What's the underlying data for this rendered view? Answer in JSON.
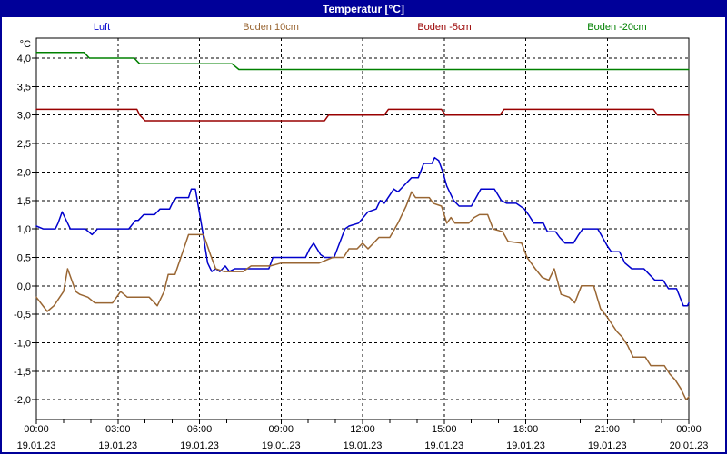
{
  "window": {
    "title": "Temperatur [°C]",
    "titlebar_color": "#000099",
    "border_color": "#000099"
  },
  "legend": [
    {
      "label": "Luft",
      "color": "#0000CC"
    },
    {
      "label": "Boden 10cm",
      "color": "#996633"
    },
    {
      "label": "Boden -5cm",
      "color": "#990000"
    },
    {
      "label": "Boden -20cm",
      "color": "#008000"
    }
  ],
  "chart_data": {
    "type": "line",
    "title": "Temperatur [°C]",
    "unit_label": "°C",
    "grid": "dashed-black",
    "legend_position": "top",
    "ylim": [
      -2.35,
      4.35
    ],
    "xlim_hours": [
      0,
      24
    ],
    "y_ticks": [
      {
        "value": 4.0,
        "label": "4,0"
      },
      {
        "value": 3.5,
        "label": "3,5"
      },
      {
        "value": 3.0,
        "label": "3,0"
      },
      {
        "value": 2.5,
        "label": "2,5"
      },
      {
        "value": 2.0,
        "label": "2,0"
      },
      {
        "value": 1.5,
        "label": "1,5"
      },
      {
        "value": 1.0,
        "label": "1,0"
      },
      {
        "value": 0.5,
        "label": "0,5"
      },
      {
        "value": 0.0,
        "label": "0,0"
      },
      {
        "value": -0.5,
        "label": "-0,5"
      },
      {
        "value": -1.0,
        "label": "-1,0"
      },
      {
        "value": -1.5,
        "label": "-1,5"
      },
      {
        "value": -2.0,
        "label": "-2,0"
      }
    ],
    "x_ticks": [
      {
        "hour": 0,
        "time": "00:00",
        "date": "19.01.23"
      },
      {
        "hour": 3,
        "time": "03:00",
        "date": "19.01.23"
      },
      {
        "hour": 6,
        "time": "06:00",
        "date": "19.01.23"
      },
      {
        "hour": 9,
        "time": "09:00",
        "date": "19.01.23"
      },
      {
        "hour": 12,
        "time": "12:00",
        "date": "19.01.23"
      },
      {
        "hour": 15,
        "time": "15:00",
        "date": "19.01.23"
      },
      {
        "hour": 18,
        "time": "18:00",
        "date": "19.01.23"
      },
      {
        "hour": 21,
        "time": "21:00",
        "date": "19.01.23"
      },
      {
        "hour": 24,
        "time": "00:00",
        "date": "20.01.23"
      }
    ],
    "series": [
      {
        "name": "Luft",
        "color": "#0000CC",
        "points": [
          [
            0,
            1.05
          ],
          [
            0.25,
            1.0
          ],
          [
            0.7,
            1.0
          ],
          [
            0.8,
            1.1
          ],
          [
            0.95,
            1.3
          ],
          [
            1.05,
            1.2
          ],
          [
            1.25,
            1.0
          ],
          [
            1.8,
            1.0
          ],
          [
            2.05,
            0.9
          ],
          [
            2.25,
            1.0
          ],
          [
            3.4,
            1.0
          ],
          [
            3.65,
            1.15
          ],
          [
            3.75,
            1.15
          ],
          [
            3.95,
            1.25
          ],
          [
            4.35,
            1.25
          ],
          [
            4.55,
            1.35
          ],
          [
            4.9,
            1.35
          ],
          [
            5.0,
            1.45
          ],
          [
            5.15,
            1.55
          ],
          [
            5.6,
            1.55
          ],
          [
            5.7,
            1.7
          ],
          [
            5.85,
            1.7
          ],
          [
            6.1,
            1.0
          ],
          [
            6.3,
            0.4
          ],
          [
            6.45,
            0.25
          ],
          [
            6.6,
            0.3
          ],
          [
            6.75,
            0.25
          ],
          [
            6.95,
            0.35
          ],
          [
            7.1,
            0.25
          ],
          [
            7.3,
            0.3
          ],
          [
            8.55,
            0.3
          ],
          [
            8.7,
            0.5
          ],
          [
            9.9,
            0.5
          ],
          [
            10.05,
            0.65
          ],
          [
            10.2,
            0.75
          ],
          [
            10.45,
            0.55
          ],
          [
            10.6,
            0.5
          ],
          [
            10.95,
            0.5
          ],
          [
            11.35,
            1.0
          ],
          [
            11.5,
            1.05
          ],
          [
            11.85,
            1.1
          ],
          [
            12.2,
            1.3
          ],
          [
            12.5,
            1.35
          ],
          [
            12.65,
            1.5
          ],
          [
            12.8,
            1.45
          ],
          [
            13.15,
            1.7
          ],
          [
            13.3,
            1.65
          ],
          [
            13.5,
            1.75
          ],
          [
            13.8,
            1.9
          ],
          [
            14.05,
            1.9
          ],
          [
            14.25,
            2.15
          ],
          [
            14.55,
            2.15
          ],
          [
            14.65,
            2.25
          ],
          [
            14.8,
            2.2
          ],
          [
            14.95,
            2.0
          ],
          [
            15.1,
            1.75
          ],
          [
            15.35,
            1.5
          ],
          [
            15.55,
            1.4
          ],
          [
            16.0,
            1.4
          ],
          [
            16.35,
            1.7
          ],
          [
            16.85,
            1.7
          ],
          [
            17.1,
            1.5
          ],
          [
            17.3,
            1.45
          ],
          [
            17.65,
            1.45
          ],
          [
            17.8,
            1.4
          ],
          [
            17.95,
            1.35
          ],
          [
            18.1,
            1.25
          ],
          [
            18.3,
            1.1
          ],
          [
            18.65,
            1.1
          ],
          [
            18.8,
            0.95
          ],
          [
            19.1,
            0.95
          ],
          [
            19.25,
            0.85
          ],
          [
            19.45,
            0.75
          ],
          [
            19.75,
            0.75
          ],
          [
            19.95,
            0.9
          ],
          [
            20.1,
            1.0
          ],
          [
            20.65,
            1.0
          ],
          [
            21.0,
            0.7
          ],
          [
            21.15,
            0.6
          ],
          [
            21.45,
            0.6
          ],
          [
            21.65,
            0.4
          ],
          [
            21.9,
            0.3
          ],
          [
            22.35,
            0.3
          ],
          [
            22.55,
            0.2
          ],
          [
            22.75,
            0.1
          ],
          [
            23.05,
            0.1
          ],
          [
            23.25,
            -0.05
          ],
          [
            23.55,
            -0.05
          ],
          [
            23.8,
            -0.35
          ],
          [
            23.95,
            -0.35
          ],
          [
            24,
            -0.3
          ]
        ]
      },
      {
        "name": "Boden 10cm",
        "color": "#996633",
        "points": [
          [
            0,
            -0.2
          ],
          [
            0.4,
            -0.45
          ],
          [
            0.65,
            -0.35
          ],
          [
            1.0,
            -0.1
          ],
          [
            1.15,
            0.3
          ],
          [
            1.45,
            -0.1
          ],
          [
            1.6,
            -0.15
          ],
          [
            1.9,
            -0.2
          ],
          [
            2.15,
            -0.3
          ],
          [
            2.8,
            -0.3
          ],
          [
            3.1,
            -0.1
          ],
          [
            3.35,
            -0.2
          ],
          [
            4.15,
            -0.2
          ],
          [
            4.45,
            -0.35
          ],
          [
            4.7,
            -0.1
          ],
          [
            4.85,
            0.2
          ],
          [
            5.1,
            0.2
          ],
          [
            5.35,
            0.55
          ],
          [
            5.6,
            0.9
          ],
          [
            6.15,
            0.9
          ],
          [
            6.4,
            0.55
          ],
          [
            6.6,
            0.3
          ],
          [
            6.9,
            0.25
          ],
          [
            7.6,
            0.25
          ],
          [
            7.9,
            0.35
          ],
          [
            8.6,
            0.35
          ],
          [
            9.0,
            0.4
          ],
          [
            10.4,
            0.4
          ],
          [
            10.9,
            0.5
          ],
          [
            11.3,
            0.5
          ],
          [
            11.5,
            0.65
          ],
          [
            11.8,
            0.65
          ],
          [
            12.0,
            0.75
          ],
          [
            12.2,
            0.65
          ],
          [
            12.4,
            0.75
          ],
          [
            12.6,
            0.85
          ],
          [
            13.0,
            0.85
          ],
          [
            13.3,
            1.1
          ],
          [
            13.6,
            1.4
          ],
          [
            13.8,
            1.65
          ],
          [
            13.95,
            1.55
          ],
          [
            14.45,
            1.55
          ],
          [
            14.6,
            1.45
          ],
          [
            14.9,
            1.4
          ],
          [
            15.1,
            1.1
          ],
          [
            15.25,
            1.2
          ],
          [
            15.4,
            1.1
          ],
          [
            15.9,
            1.1
          ],
          [
            16.1,
            1.2
          ],
          [
            16.3,
            1.25
          ],
          [
            16.6,
            1.25
          ],
          [
            16.8,
            1.0
          ],
          [
            17.15,
            0.95
          ],
          [
            17.35,
            0.78
          ],
          [
            17.85,
            0.75
          ],
          [
            18.05,
            0.5
          ],
          [
            18.35,
            0.3
          ],
          [
            18.6,
            0.15
          ],
          [
            18.85,
            0.1
          ],
          [
            19.05,
            0.3
          ],
          [
            19.3,
            -0.15
          ],
          [
            19.6,
            -0.2
          ],
          [
            19.8,
            -0.3
          ],
          [
            20.05,
            0.0
          ],
          [
            20.5,
            0.0
          ],
          [
            20.75,
            -0.4
          ],
          [
            21.0,
            -0.55
          ],
          [
            21.35,
            -0.8
          ],
          [
            21.55,
            -0.9
          ],
          [
            21.75,
            -1.05
          ],
          [
            21.95,
            -1.25
          ],
          [
            22.4,
            -1.25
          ],
          [
            22.6,
            -1.4
          ],
          [
            23.1,
            -1.4
          ],
          [
            23.3,
            -1.55
          ],
          [
            23.5,
            -1.65
          ],
          [
            23.7,
            -1.8
          ],
          [
            23.9,
            -2.0
          ],
          [
            24,
            -1.95
          ]
        ]
      },
      {
        "name": "Boden -5cm",
        "color": "#990000",
        "points": [
          [
            0,
            3.1
          ],
          [
            3.7,
            3.1
          ],
          [
            3.8,
            3.0
          ],
          [
            4.0,
            2.9
          ],
          [
            10.6,
            2.9
          ],
          [
            10.75,
            3.0
          ],
          [
            12.8,
            3.0
          ],
          [
            12.95,
            3.1
          ],
          [
            14.9,
            3.1
          ],
          [
            15.05,
            3.0
          ],
          [
            17.05,
            3.0
          ],
          [
            17.2,
            3.1
          ],
          [
            22.7,
            3.1
          ],
          [
            22.85,
            3.0
          ],
          [
            24,
            3.0
          ]
        ]
      },
      {
        "name": "Boden -20cm",
        "color": "#008000",
        "points": [
          [
            0,
            4.1
          ],
          [
            1.75,
            4.1
          ],
          [
            1.95,
            4.0
          ],
          [
            3.6,
            4.0
          ],
          [
            3.8,
            3.9
          ],
          [
            7.2,
            3.9
          ],
          [
            7.45,
            3.8
          ],
          [
            24,
            3.8
          ]
        ]
      }
    ]
  }
}
